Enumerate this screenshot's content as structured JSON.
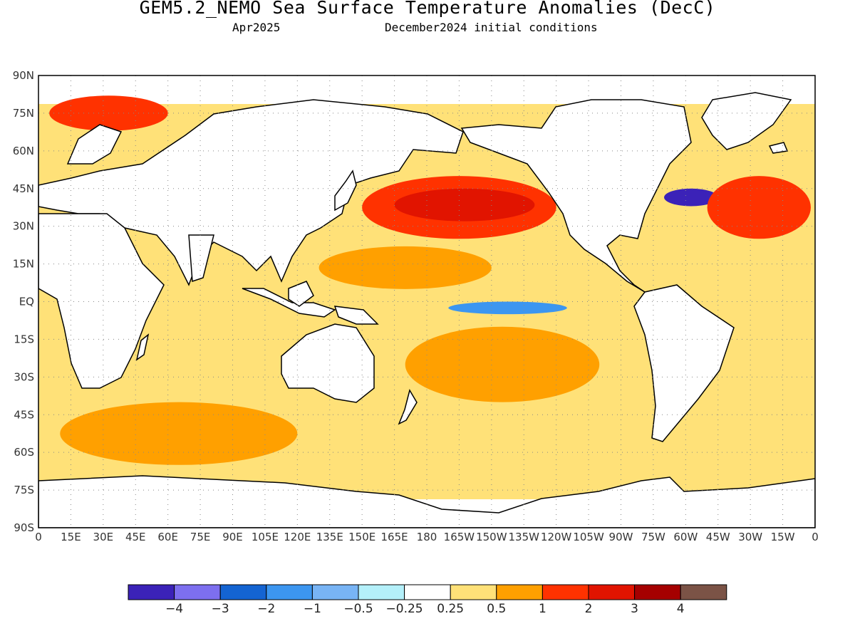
{
  "title": "GEM5.2_NEMO Sea Surface Temperature Anomalies (DecC)",
  "subtitle_left": "Apr2025",
  "subtitle_right": "December2024 initial conditions",
  "map": {
    "projection": "equirectangular",
    "lon_range": [
      0,
      360
    ],
    "lat_range": [
      -90,
      90
    ],
    "grid": "dotted",
    "lat_ticks": [
      {
        "lat": 90,
        "label": "90N"
      },
      {
        "lat": 75,
        "label": "75N"
      },
      {
        "lat": 60,
        "label": "60N"
      },
      {
        "lat": 45,
        "label": "45N"
      },
      {
        "lat": 30,
        "label": "30N"
      },
      {
        "lat": 15,
        "label": "15N"
      },
      {
        "lat": 0,
        "label": "EQ"
      },
      {
        "lat": -15,
        "label": "15S"
      },
      {
        "lat": -30,
        "label": "30S"
      },
      {
        "lat": -45,
        "label": "45S"
      },
      {
        "lat": -60,
        "label": "60S"
      },
      {
        "lat": -75,
        "label": "75S"
      },
      {
        "lat": -90,
        "label": "90S"
      }
    ],
    "lon_ticks": [
      {
        "lon": 0,
        "label": "0"
      },
      {
        "lon": 15,
        "label": "15E"
      },
      {
        "lon": 30,
        "label": "30E"
      },
      {
        "lon": 45,
        "label": "45E"
      },
      {
        "lon": 60,
        "label": "60E"
      },
      {
        "lon": 75,
        "label": "75E"
      },
      {
        "lon": 90,
        "label": "90E"
      },
      {
        "lon": 105,
        "label": "105E"
      },
      {
        "lon": 120,
        "label": "120E"
      },
      {
        "lon": 135,
        "label": "135E"
      },
      {
        "lon": 150,
        "label": "150E"
      },
      {
        "lon": 165,
        "label": "165E"
      },
      {
        "lon": 180,
        "label": "180"
      },
      {
        "lon": 195,
        "label": "165W"
      },
      {
        "lon": 210,
        "label": "150W"
      },
      {
        "lon": 225,
        "label": "135W"
      },
      {
        "lon": 240,
        "label": "120W"
      },
      {
        "lon": 255,
        "label": "105W"
      },
      {
        "lon": 270,
        "label": "90W"
      },
      {
        "lon": 285,
        "label": "75W"
      },
      {
        "lon": 300,
        "label": "60W"
      },
      {
        "lon": 315,
        "label": "45W"
      },
      {
        "lon": 330,
        "label": "30W"
      },
      {
        "lon": 345,
        "label": "15W"
      },
      {
        "lon": 360,
        "label": "0"
      }
    ],
    "anomaly_regions": [
      {
        "name": "north-pacific-warm",
        "lon": [
          150,
          240
        ],
        "lat": [
          25,
          50
        ],
        "level": 2
      },
      {
        "name": "north-pacific-core",
        "lon": [
          165,
          230
        ],
        "lat": [
          32,
          45
        ],
        "level": 3
      },
      {
        "name": "tropical-west-pacific-warm",
        "lon": [
          130,
          210
        ],
        "lat": [
          5,
          22
        ],
        "level": 1
      },
      {
        "name": "equatorial-pacific-cool",
        "lon": [
          190,
          245
        ],
        "lat": [
          -5,
          0
        ],
        "level": -1
      },
      {
        "name": "gulf-stream-cool",
        "lon": [
          290,
          315
        ],
        "lat": [
          38,
          45
        ],
        "level": -4
      },
      {
        "name": "north-atlantic-warm",
        "lon": [
          310,
          358
        ],
        "lat": [
          25,
          50
        ],
        "level": 2
      },
      {
        "name": "barents-warm",
        "lon": [
          5,
          60
        ],
        "lat": [
          68,
          82
        ],
        "level": 2
      },
      {
        "name": "southern-ocean-warm",
        "lon": [
          10,
          120
        ],
        "lat": [
          -65,
          -40
        ],
        "level": 1
      },
      {
        "name": "indian-ocean-warm",
        "lon": [
          40,
          110
        ],
        "lat": [
          -10,
          20
        ],
        "level": 0.5
      },
      {
        "name": "south-pacific-warm",
        "lon": [
          170,
          260
        ],
        "lat": [
          -40,
          -10
        ],
        "level": 1
      }
    ]
  },
  "colorbar": {
    "colors": [
      "#3b22b8",
      "#7d6fef",
      "#1464d2",
      "#3c96f0",
      "#78b4f5",
      "#b4f0fa",
      "#ffffff",
      "#ffe178",
      "#ffa000",
      "#ff3200",
      "#e11400",
      "#a50000",
      "#7b5346"
    ],
    "labels": [
      "-4",
      "-3",
      "-2",
      "-1",
      "-0.5",
      "-0.25",
      "0.25",
      "0.5",
      "1",
      "2",
      "3",
      "4"
    ]
  }
}
